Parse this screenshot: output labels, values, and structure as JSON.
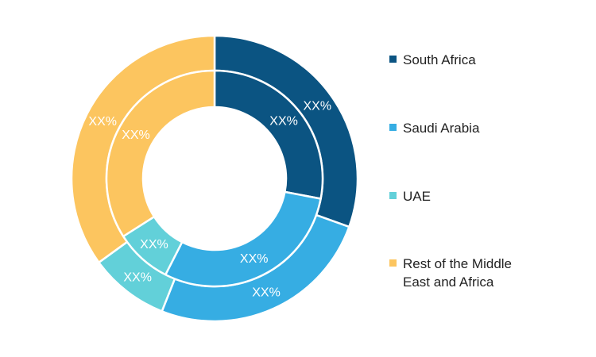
{
  "chart_data": {
    "type": "pie",
    "variant": "double-donut",
    "categories": [
      "South Africa",
      "Saudi Arabia",
      "UAE",
      "Rest of the Middle East and Africa"
    ],
    "colors": [
      "#0b5482",
      "#36ade3",
      "#62d0d9",
      "#fcc55f"
    ],
    "series": [
      {
        "ring": "outer",
        "values": [
          30.5,
          25.5,
          9.0,
          35.0
        ],
        "labels": [
          "XX%",
          "XX%",
          "XX%",
          "XX%"
        ]
      },
      {
        "ring": "inner",
        "values": [
          28.0,
          29.5,
          8.5,
          34.0
        ],
        "labels": [
          "XX%",
          "XX%",
          "XX%",
          "XX%"
        ]
      }
    ],
    "legend_position": "right"
  }
}
